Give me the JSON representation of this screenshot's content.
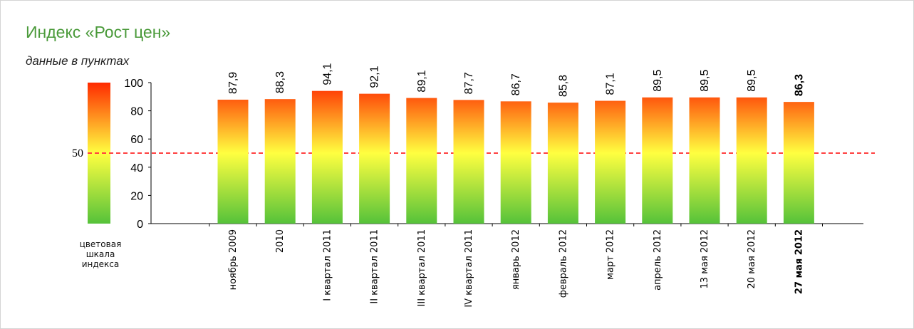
{
  "title": "Индекс «Рост цен»",
  "subtitle": "данные в пунктах",
  "scale_caption": [
    "цветовая",
    "шкала",
    "индекса"
  ],
  "threshold_label": "50",
  "colors": {
    "title": "#4a9a3a",
    "gradient_top": "#ff2a00",
    "gradient_mid": "#ffff40",
    "gradient_bottom": "#55c23a",
    "threshold_line": "#ff4040"
  },
  "chart_data": {
    "type": "bar",
    "title": "Индекс «Рост цен»",
    "subtitle": "данные в пунктах",
    "categories": [
      "ноябрь 2009",
      "2010",
      "I квартал 2011",
      "II квартал 2011",
      "III квартал 2011",
      "IV квартал 2011",
      "январь 2012",
      "февраль 2012",
      "март 2012",
      "апрель 2012",
      "13 мая 2012",
      "20 мая 2012",
      "27 мая 2012"
    ],
    "values": [
      87.9,
      88.3,
      94.1,
      92.1,
      89.1,
      87.7,
      86.7,
      85.8,
      87.1,
      89.5,
      89.5,
      89.5,
      86.3
    ],
    "value_labels": [
      "87,9",
      "88,3",
      "94,1",
      "92,1",
      "89,1",
      "87,7",
      "86,7",
      "85,8",
      "87,1",
      "89,5",
      "89,5",
      "89,5",
      "86,3"
    ],
    "highlight_index": 12,
    "ylim": [
      0,
      100
    ],
    "yticks": [
      "0",
      "20",
      "40",
      "60",
      "80",
      "100"
    ],
    "reference_line": 50,
    "grid": false
  }
}
